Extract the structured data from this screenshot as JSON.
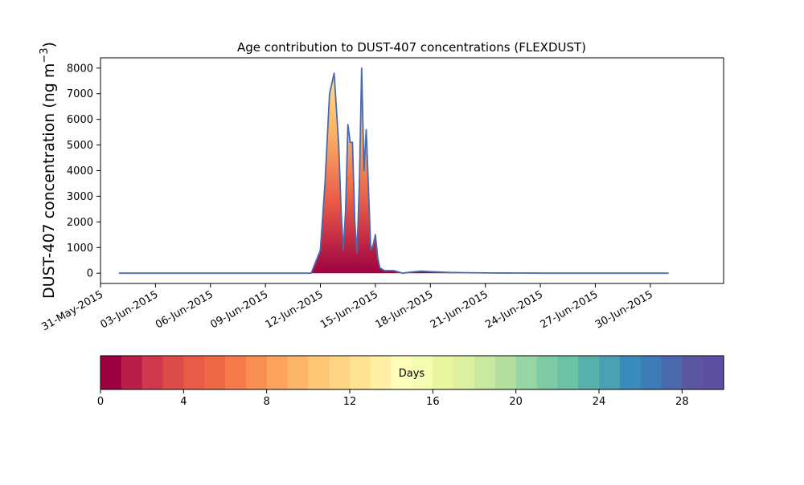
{
  "chart_data": {
    "type": "area",
    "title": "Age contribution to DUST-407 concentrations (FLEXDUST)",
    "ylabel": "DUST-407 concentration (ng m",
    "ylabel_superscript": "−3",
    "ylabel_suffix": ")",
    "xlabel": "",
    "y_ticks": [
      0,
      1000,
      2000,
      3000,
      4000,
      5000,
      6000,
      7000,
      8000
    ],
    "ylim": [
      -400,
      8400
    ],
    "xlim": [
      "2015-05-31",
      "2015-07-04"
    ],
    "x_ticks": [
      {
        "date": "2015-05-31",
        "label": "31-May-2015"
      },
      {
        "date": "2015-06-03",
        "label": "03-Jun-2015"
      },
      {
        "date": "2015-06-06",
        "label": "06-Jun-2015"
      },
      {
        "date": "2015-06-09",
        "label": "09-Jun-2015"
      },
      {
        "date": "2015-06-12",
        "label": "12-Jun-2015"
      },
      {
        "date": "2015-06-15",
        "label": "15-Jun-2015"
      },
      {
        "date": "2015-06-18",
        "label": "18-Jun-2015"
      },
      {
        "date": "2015-06-21",
        "label": "21-Jun-2015"
      },
      {
        "date": "2015-06-24",
        "label": "24-Jun-2015"
      },
      {
        "date": "2015-06-27",
        "label": "27-Jun-2015"
      },
      {
        "date": "2015-06-30",
        "label": "30-Jun-2015"
      }
    ],
    "total_series": {
      "x": [
        "2015-06-01",
        "2015-06-05",
        "2015-06-11 12:00",
        "2015-06-12",
        "2015-06-12 06:00",
        "2015-06-12 12:00",
        "2015-06-12 18:00",
        "2015-06-13",
        "2015-06-13 03:00",
        "2015-06-13 06:00",
        "2015-06-13 09:00",
        "2015-06-13 12:00",
        "2015-06-13 15:00",
        "2015-06-13 18:00",
        "2015-06-13 21:00",
        "2015-06-14",
        "2015-06-14 03:00",
        "2015-06-14 06:00",
        "2015-06-14 09:00",
        "2015-06-14 12:00",
        "2015-06-14 18:00",
        "2015-06-14 21:00",
        "2015-06-15",
        "2015-06-15 03:00",
        "2015-06-15 06:00",
        "2015-06-15 12:00",
        "2015-06-16",
        "2015-06-16 12:00",
        "2015-06-17",
        "2015-06-17 12:00",
        "2015-06-18",
        "2015-06-19",
        "2015-06-20",
        "2015-06-21",
        "2015-06-24",
        "2015-06-27",
        "2015-07-01"
      ],
      "values": [
        0,
        0,
        0,
        900,
        3500,
        7000,
        7800,
        5000,
        2500,
        900,
        2500,
        5800,
        5100,
        5100,
        2000,
        800,
        3500,
        8000,
        4000,
        5600,
        900,
        1100,
        1500,
        600,
        200,
        100,
        100,
        0,
        50,
        80,
        60,
        30,
        20,
        10,
        0,
        0,
        0
      ]
    },
    "age_colorbar": {
      "label": "Days",
      "range": [
        0,
        30
      ],
      "ticks": [
        0,
        4,
        8,
        12,
        16,
        20,
        24,
        28
      ],
      "colors": [
        "#9e0142",
        "#b91e48",
        "#d0384e",
        "#dd4b4a",
        "#e95b47",
        "#f06744",
        "#f67b4c",
        "#f98e52",
        "#fca25c",
        "#fdb567",
        "#fec574",
        "#fdd585",
        "#fee392",
        "#fff0a6",
        "#fffdbc",
        "#f6fbb2",
        "#e9f69d",
        "#dbf1a0",
        "#c9e9a1",
        "#b2df9e",
        "#98d5a4",
        "#80cba4",
        "#6bc3a5",
        "#58b0aa",
        "#4aa1b2",
        "#3a8dba",
        "#3c7cb8",
        "#4a6aad",
        "#5a56a2",
        "#5e4fa2"
      ]
    },
    "line_color": "#4a6aad",
    "grid": false
  }
}
